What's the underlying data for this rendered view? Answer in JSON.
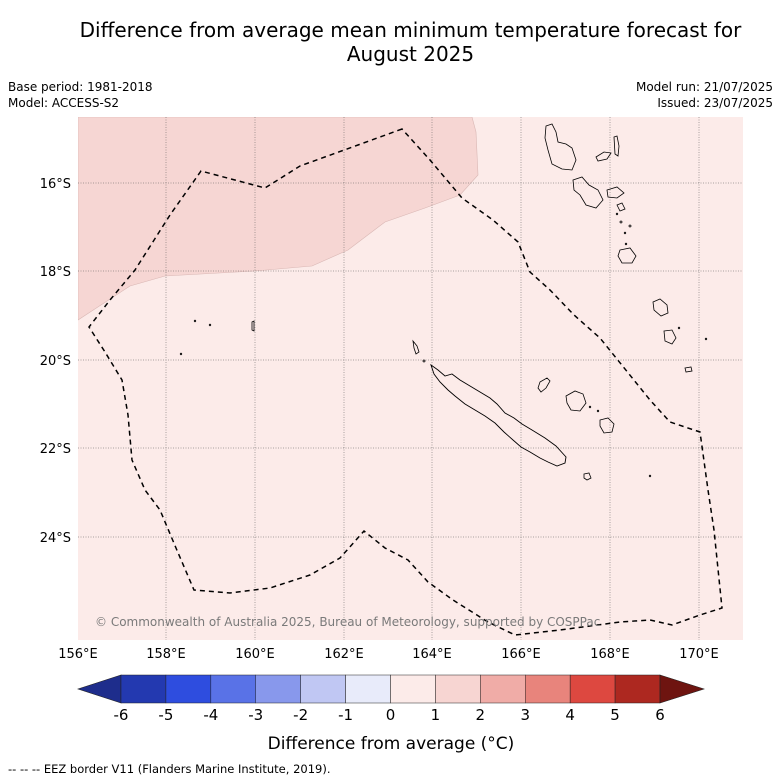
{
  "title_line1": "Difference from average mean minimum temperature forecast for",
  "title_line2": "August 2025",
  "base_period": "Base period: 1981-2018",
  "model": "Model: ACCESS-S2",
  "model_run": "Model run: 21/07/2025",
  "issued": "Issued: 23/07/2025",
  "copyright": "© Commonwealth of Australia 2025, Bureau of Meteorology, supported by COSPPac",
  "lat_labels": [
    "16°S",
    "18°S",
    "20°S",
    "22°S",
    "24°S"
  ],
  "lon_labels": [
    "156°E",
    "158°E",
    "160°E",
    "162°E",
    "164°E",
    "166°E",
    "168°E",
    "170°E"
  ],
  "colorbar": {
    "ticks": [
      "-6",
      "-5",
      "-4",
      "-3",
      "-2",
      "-1",
      "0",
      "1",
      "2",
      "3",
      "4",
      "5",
      "6"
    ],
    "colors": [
      "#1e2d8c",
      "#2339b0",
      "#2e4ddf",
      "#5972e7",
      "#8898ec",
      "#c0c7f3",
      "#e8ebfa",
      "#fcebe9",
      "#f7d5d2",
      "#f0aca7",
      "#e8847c",
      "#dd4840",
      "#ad2820",
      "#6e1410"
    ],
    "label": "Difference from average (°C)"
  },
  "footnote": "--  --  -- EEZ border V11 (Flanders Marine Institute, 2019).",
  "field": {
    "background_category": "0 to 1",
    "warmer_region_category": "1 to 2",
    "background_color": "#fcebe9",
    "warmer_color": "#f6d6d3"
  }
}
